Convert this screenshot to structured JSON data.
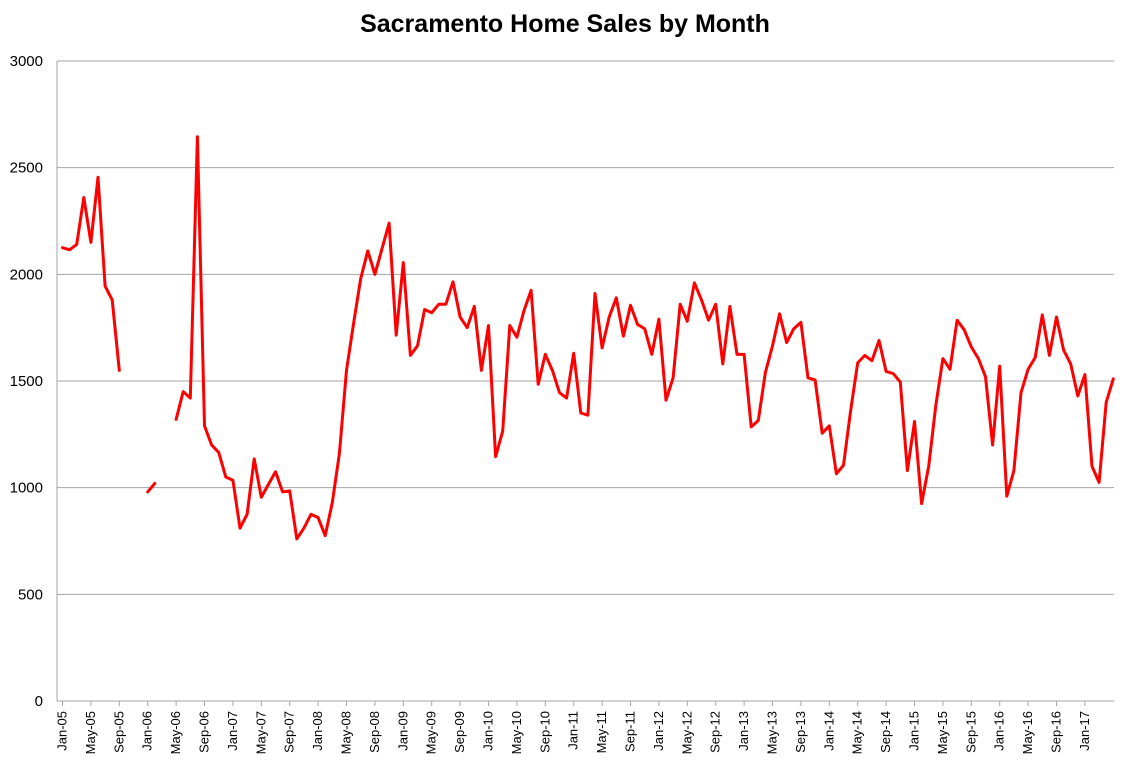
{
  "chart_data": {
    "type": "line",
    "title": "Sacramento Home Sales by Month",
    "xlabel": "",
    "ylabel": "",
    "ylim": [
      0,
      3000
    ],
    "yticks": [
      0,
      500,
      1000,
      1500,
      2000,
      2500,
      3000
    ],
    "grid": "horizontal",
    "legend": "none",
    "x_start": "Jan-05",
    "x_tick_labels": [
      "Jan-05",
      "May-05",
      "Sep-05",
      "Jan-06",
      "May-06",
      "Sep-06",
      "Jan-07",
      "May-07",
      "Sep-07",
      "Jan-08",
      "May-08",
      "Sep-08",
      "Jan-09",
      "May-09",
      "Sep-09",
      "Jan-10",
      "May-10",
      "Sep-10",
      "Jan-11",
      "May-11",
      "Sep-11",
      "Jan-12",
      "May-12",
      "Sep-12",
      "Jan-13",
      "May-13",
      "Sep-13",
      "Jan-14",
      "May-14",
      "Sep-14",
      "Jan-15",
      "May-15",
      "Sep-15",
      "Jan-16",
      "May-16",
      "Sep-16",
      "Jan-17"
    ],
    "series": [
      {
        "color": "#ff0000",
        "values": [
          2125,
          2115,
          2140,
          2360,
          2150,
          2455,
          1945,
          1880,
          1550,
          null,
          null,
          null,
          980,
          1020,
          null,
          null,
          1320,
          1450,
          1420,
          2645,
          1290,
          1200,
          1165,
          1050,
          1035,
          810,
          875,
          1135,
          955,
          1015,
          1075,
          980,
          985,
          760,
          810,
          875,
          860,
          775,
          930,
          1160,
          1550,
          1770,
          1980,
          2110,
          2000,
          2120,
          2240,
          1715,
          2055,
          1620,
          1665,
          1835,
          1820,
          1860,
          1860,
          1965,
          1800,
          1750,
          1850,
          1550,
          1760,
          1145,
          1265,
          1760,
          1705,
          1830,
          1925,
          1485,
          1625,
          1550,
          1445,
          1420,
          1630,
          1350,
          1340,
          1910,
          1655,
          1800,
          1890,
          1710,
          1855,
          1765,
          1745,
          1625,
          1790,
          1410,
          1515,
          1860,
          1780,
          1960,
          1880,
          1785,
          1860,
          1580,
          1850,
          1625,
          1625,
          1285,
          1315,
          1540,
          1665,
          1815,
          1680,
          1745,
          1775,
          1515,
          1505,
          1255,
          1290,
          1065,
          1105,
          1360,
          1585,
          1620,
          1595,
          1690,
          1545,
          1535,
          1495,
          1080,
          1310,
          925,
          1100,
          1385,
          1605,
          1555,
          1785,
          1740,
          1660,
          1605,
          1520,
          1200,
          1570,
          960,
          1080,
          1445,
          1555,
          1610,
          1810,
          1620,
          1800,
          1645,
          1580,
          1430,
          1530,
          1100,
          1025,
          1400,
          1510
        ]
      }
    ]
  }
}
